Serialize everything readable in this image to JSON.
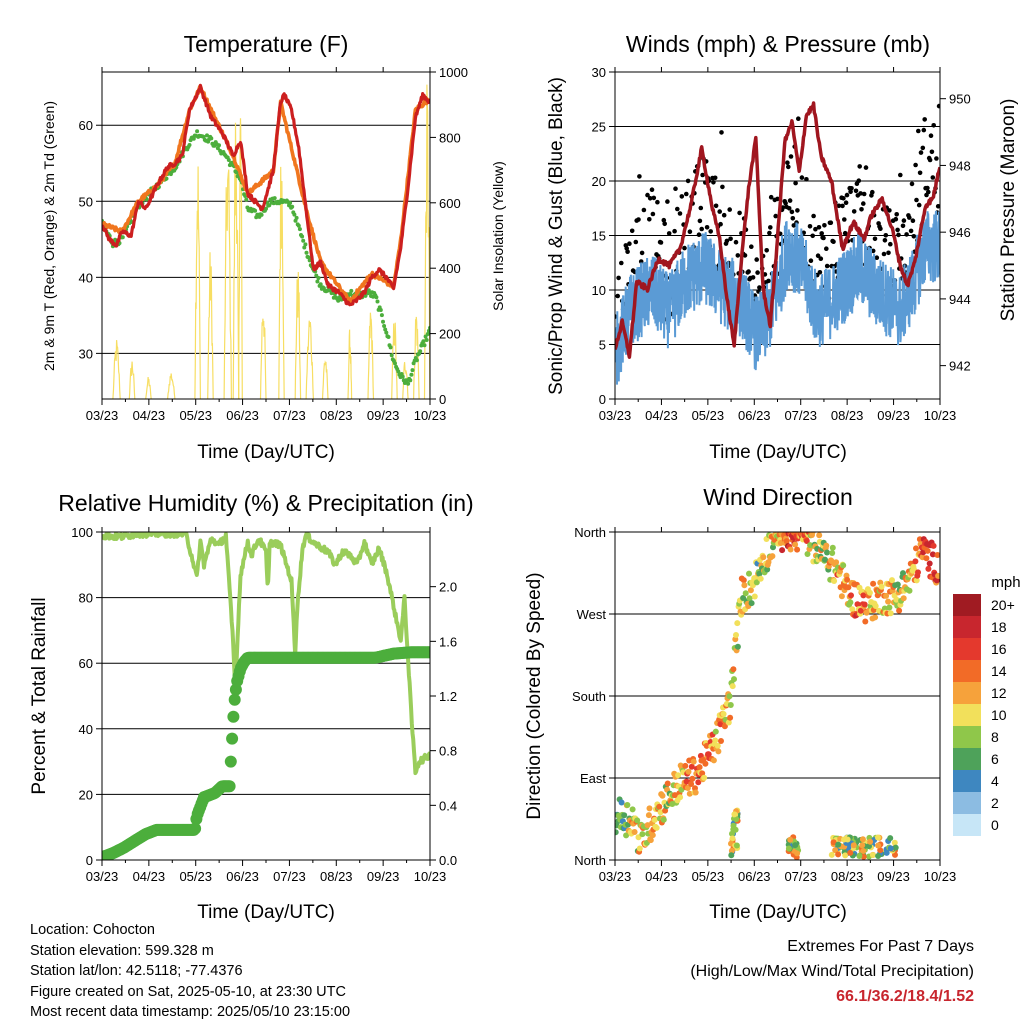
{
  "charts": {
    "temperature": {
      "title": "Temperature (F)",
      "xlabel": "Time (Day/UTC)",
      "ylabel_left": "2m & 9m T (Red, Orange) & 2m Td (Green)",
      "ylabel_right": "Solar Insolation (Yellow)"
    },
    "winds": {
      "title": "Winds (mph) & Pressure (mb)",
      "xlabel": "Time (Day/UTC)",
      "ylabel_left": "Sonic/Prop Wind & Gust (Blue, Black)",
      "ylabel_right": "Station Pressure (Maroon)"
    },
    "humidity": {
      "title": "Relative Humidity (%) & Precipitation (in)",
      "xlabel": "Time (Day/UTC)",
      "ylabel_left": "Percent & Total Rainfall"
    },
    "direction": {
      "title": "Wind Direction",
      "xlabel": "Time (Day/UTC)",
      "ylabel_left": "Direction (Colored By Speed)",
      "legend_title": "mph"
    }
  },
  "chart_data": [
    {
      "id": "temperature",
      "type": "line",
      "x_ticks": [
        "03/23",
        "04/23",
        "05/23",
        "06/23",
        "07/23",
        "08/23",
        "09/23",
        "10/23"
      ],
      "ylim": [
        24,
        67
      ],
      "y_ticks": [
        30,
        40,
        50,
        60
      ],
      "y2lim": [
        0,
        1000
      ],
      "y2_ticks": [
        0,
        200,
        400,
        600,
        800,
        1000
      ],
      "series": [
        {
          "name": "2m T",
          "color": "#cc1f1f",
          "x": [
            0,
            0.2,
            0.4,
            0.55,
            0.8,
            1,
            1.2,
            1.5,
            1.8,
            2,
            2.2,
            2.4,
            2.7,
            3,
            3.3,
            3.6,
            3.8,
            4,
            4.2,
            4.4,
            4.7,
            4.9,
            5,
            5.2,
            5.4,
            5.6,
            5.8,
            6,
            6.2,
            6.5,
            6.8,
            7,
            7.2,
            7.4,
            7.6,
            7.8,
            8,
            8.2,
            8.4,
            8.6,
            8.8,
            9
          ],
          "values": [
            47,
            45,
            44.2,
            46,
            45.5,
            50,
            49,
            52,
            54.5,
            55,
            56,
            62,
            65,
            61,
            59,
            56,
            58,
            51,
            50,
            49,
            54,
            63,
            64,
            62,
            57,
            49,
            41,
            42,
            39,
            38,
            36.3,
            37,
            38,
            40,
            41,
            40,
            38.5,
            44,
            52,
            61,
            64,
            63
          ]
        },
        {
          "name": "9m T",
          "color": "#f0761e",
          "x": [
            0,
            0.55,
            1,
            1.5,
            2,
            2.4,
            2.7,
            3.6,
            4,
            4.7,
            4.9,
            5.6,
            6,
            6.8,
            7.4,
            8,
            8.2,
            8.6,
            9
          ],
          "values": [
            47,
            46,
            50,
            52,
            55,
            62,
            65,
            56,
            51,
            54,
            63,
            49,
            42,
            36.8,
            40.5,
            38.8,
            45,
            62,
            63.5
          ]
        },
        {
          "name": "2m Td",
          "color": "#4cae3c",
          "x": [
            0,
            0.3,
            0.55,
            1,
            1.5,
            2,
            2.3,
            2.6,
            3,
            3.4,
            3.8,
            4,
            4.3,
            4.6,
            4.9,
            5.2,
            5.5,
            5.8,
            6,
            6.3,
            6.5,
            6.8,
            7,
            7.3,
            7.5,
            7.8,
            8,
            8.2,
            8.4,
            8.6,
            8.8,
            9
          ],
          "values": [
            47,
            44.5,
            45,
            49.5,
            52,
            54.5,
            57,
            59,
            58,
            56,
            53,
            49,
            48,
            50,
            50,
            49.5,
            45,
            41,
            39,
            38,
            37,
            38,
            37.5,
            38,
            37.5,
            33,
            29,
            27,
            26,
            29,
            31,
            33
          ]
        },
        {
          "name": "Solar",
          "axis": "right",
          "color": "#f7de63",
          "peaks": [
            [
              0.3,
              0.5,
              190
            ],
            [
              0.75,
              0.9,
              130
            ],
            [
              1.2,
              1.35,
              70
            ],
            [
              1.8,
              2.0,
              90
            ],
            [
              2.55,
              2.7,
              800
            ],
            [
              2.9,
              3.05,
              470
            ],
            [
              3.35,
              3.55,
              830
            ],
            [
              3.6,
              3.75,
              950
            ],
            [
              3.75,
              3.85,
              1000
            ],
            [
              4.35,
              4.5,
              350
            ],
            [
              4.85,
              5.0,
              830
            ],
            [
              5.3,
              5.45,
              420
            ],
            [
              5.6,
              5.8,
              280
            ],
            [
              6.05,
              6.2,
              150
            ],
            [
              6.75,
              6.85,
              220
            ],
            [
              7.3,
              7.45,
              300
            ],
            [
              7.95,
              8.1,
              270
            ],
            [
              8.25,
              8.4,
              140
            ],
            [
              8.55,
              8.7,
              300
            ],
            [
              8.85,
              9.0,
              990
            ]
          ]
        }
      ]
    },
    {
      "id": "winds",
      "type": "scatter+line",
      "x_ticks": [
        "03/23",
        "04/23",
        "05/23",
        "06/23",
        "07/23",
        "08/23",
        "09/23",
        "10/23"
      ],
      "ylim": [
        0,
        30
      ],
      "y_ticks": [
        0,
        5,
        10,
        15,
        20,
        25,
        30
      ],
      "y2lim": [
        941,
        950.8
      ],
      "y2_ticks": [
        942,
        944,
        946,
        948,
        950
      ],
      "series": [
        {
          "name": "Sonic/Prop Wind",
          "color": "#5b9bd5",
          "base": [
            [
              0,
              4
            ],
            [
              0.4,
              8
            ],
            [
              1,
              10
            ],
            [
              1.5,
              8
            ],
            [
              2,
              11
            ],
            [
              2.5,
              12
            ],
            [
              3,
              10
            ],
            [
              3.5,
              9
            ],
            [
              3.9,
              6
            ],
            [
              4.2,
              7
            ],
            [
              4.5,
              10
            ],
            [
              4.8,
              14
            ],
            [
              5.2,
              12
            ],
            [
              5.6,
              8
            ],
            [
              6,
              9
            ],
            [
              6.5,
              11
            ],
            [
              6.8,
              12
            ],
            [
              7.2,
              10
            ],
            [
              7.6,
              9
            ],
            [
              7.9,
              8
            ],
            [
              8.3,
              11
            ],
            [
              8.6,
              14
            ],
            [
              9,
              14
            ]
          ]
        },
        {
          "name": "Gust",
          "color": "#000000",
          "base": [
            [
              0,
              7
            ],
            [
              0.4,
              12
            ],
            [
              1,
              15
            ],
            [
              1.5,
              11
            ],
            [
              2,
              16
            ],
            [
              2.5,
              18
            ],
            [
              3,
              15
            ],
            [
              3.5,
              13
            ],
            [
              3.9,
              9
            ],
            [
              4.2,
              11
            ],
            [
              4.5,
              15
            ],
            [
              4.8,
              20
            ],
            [
              5.2,
              17
            ],
            [
              5.6,
              12
            ],
            [
              6,
              14
            ],
            [
              6.5,
              16
            ],
            [
              6.8,
              17
            ],
            [
              7.2,
              14
            ],
            [
              7.6,
              13
            ],
            [
              7.9,
              12
            ],
            [
              8.3,
              17
            ],
            [
              8.6,
              22
            ],
            [
              9,
              21
            ]
          ]
        },
        {
          "name": "Station Pressure",
          "axis": "right",
          "color": "#a0161f",
          "x": [
            0,
            0.2,
            0.4,
            0.6,
            0.9,
            1.2,
            1.5,
            1.8,
            2.1,
            2.4,
            2.7,
            2.9,
            3.1,
            3.3,
            3.5,
            3.7,
            3.9,
            4.1,
            4.3,
            4.5,
            4.7,
            4.9,
            5.1,
            5.3,
            5.5,
            5.7,
            6,
            6.3,
            6.6,
            6.9,
            7.1,
            7.4,
            7.7,
            7.9,
            8.1,
            8.3,
            8.6,
            8.8,
            9
          ],
          "values": [
            942.5,
            943.3,
            942.3,
            944.5,
            944.3,
            945.2,
            945,
            945.5,
            946.8,
            948.5,
            946.7,
            945.8,
            944,
            942.6,
            945.2,
            947.3,
            948.8,
            944.3,
            943.2,
            945.8,
            948.7,
            949.3,
            947.8,
            949.5,
            949.8,
            948.3,
            947.5,
            945.5,
            946.3,
            945.8,
            946.5,
            947,
            946,
            945,
            944.4,
            945.1,
            946.8,
            947,
            948
          ]
        }
      ]
    },
    {
      "id": "humidity",
      "type": "line",
      "x_ticks": [
        "03/23",
        "04/23",
        "05/23",
        "06/23",
        "07/23",
        "08/23",
        "09/23",
        "10/23"
      ],
      "ylim": [
        0,
        100
      ],
      "y_ticks": [
        0,
        20,
        40,
        60,
        80,
        100
      ],
      "y2lim": [
        0,
        2.4
      ],
      "y2_ticks": [
        "0.0",
        "0.4",
        "0.8",
        "1.2",
        "1.6",
        "2.0"
      ],
      "series": [
        {
          "name": "Relative Humidity",
          "color": "#9acd5b",
          "x": [
            0,
            0.5,
            1,
            1.5,
            2,
            2.3,
            2.5,
            2.6,
            2.7,
            2.8,
            3,
            3.2,
            3.4,
            3.6,
            3.65,
            3.7,
            3.8,
            4,
            4.1,
            4.3,
            4.5,
            4.55,
            4.6,
            4.9,
            5.2,
            5.3,
            5.35,
            5.5,
            5.6,
            5.9,
            6.2,
            6.4,
            6.6,
            6.8,
            7,
            7.2,
            7.4,
            7.6,
            7.8,
            7.9,
            8.1,
            8.2,
            8.3,
            8.5,
            8.6,
            8.7,
            9
          ],
          "values": [
            99,
            98.5,
            99.5,
            99.5,
            99.5,
            99.5,
            91,
            86,
            97,
            90,
            98,
            96,
            99,
            66,
            53,
            63,
            87,
            97,
            93,
            98,
            94,
            81,
            97,
            96,
            85,
            63,
            76,
            95,
            99,
            96,
            94,
            90,
            94,
            93,
            90,
            97,
            90,
            95,
            88,
            83,
            72,
            67,
            80,
            42,
            27,
            30,
            32
          ]
        },
        {
          "name": "Total Rainfall",
          "axis": "right",
          "color": "#4cae3c",
          "x": [
            0,
            0.3,
            0.6,
            0.9,
            1.2,
            1.5,
            1.8,
            2.0,
            2.15,
            2.3,
            2.55,
            2.6,
            2.8,
            3.1,
            3.3,
            3.5,
            3.52,
            3.55,
            3.6,
            3.62,
            3.7,
            3.8,
            3.9,
            4.0,
            4.5,
            5.0,
            6.0,
            7.0,
            7.5,
            8.0,
            8.5,
            9.0
          ],
          "values": [
            0.02,
            0.05,
            0.09,
            0.14,
            0.19,
            0.22,
            0.22,
            0.22,
            0.22,
            0.22,
            0.22,
            0.32,
            0.46,
            0.49,
            0.54,
            0.54,
            0.64,
            0.8,
            1.02,
            1.13,
            1.3,
            1.4,
            1.45,
            1.48,
            1.48,
            1.48,
            1.48,
            1.48,
            1.48,
            1.51,
            1.52,
            1.52
          ]
        }
      ]
    },
    {
      "id": "direction",
      "type": "scatter",
      "x_ticks": [
        "03/23",
        "04/23",
        "05/23",
        "06/23",
        "07/23",
        "08/23",
        "09/23",
        "10/23"
      ],
      "y_ticks": [
        "North",
        "East",
        "South",
        "West",
        "North"
      ],
      "ylim": [
        0,
        360
      ],
      "trend": [
        [
          0,
          50
        ],
        [
          0.5,
          45
        ],
        [
          0.7,
          20
        ],
        [
          1.2,
          55
        ],
        [
          1.8,
          85
        ],
        [
          2.3,
          95
        ],
        [
          2.8,
          130
        ],
        [
          3.2,
          175
        ],
        [
          3.5,
          290
        ],
        [
          3.8,
          300
        ],
        [
          4.1,
          330
        ],
        [
          4.5,
          360
        ],
        [
          4.9,
          360
        ],
        [
          5.3,
          355
        ],
        [
          5.6,
          340
        ],
        [
          5.9,
          330
        ],
        [
          6.2,
          315
        ],
        [
          6.5,
          290
        ],
        [
          7.0,
          280
        ],
        [
          7.4,
          290
        ],
        [
          7.8,
          290
        ],
        [
          8.2,
          310
        ],
        [
          8.5,
          340
        ],
        [
          9,
          320
        ]
      ],
      "side_cluster": [
        [
          4.8,
          7.8,
          3,
          25
        ]
      ],
      "legend": {
        "labels": [
          "20+",
          "18",
          "16",
          "14",
          "12",
          "10",
          "8",
          "6",
          "4",
          "2",
          "0"
        ],
        "colors": [
          "#a01b22",
          "#c8262e",
          "#e4392d",
          "#f26b27",
          "#f6a23b",
          "#f2e05b",
          "#8fc74a",
          "#4ea25a",
          "#3e87c0",
          "#8cbce2",
          "#c7e6f7"
        ]
      }
    }
  ],
  "info": {
    "location": "Location: Cohocton",
    "elevation": "Station elevation: 599.328 m",
    "latlon": "Station lat/lon: 42.5118; -77.4376",
    "created": "Figure created on Sat, 2025-05-10, at 23:30 UTC",
    "recent": "Most recent data timestamp: 2025/05/10 23:15:00"
  },
  "extremes": {
    "title": "Extremes For Past 7 Days",
    "subtitle": "(High/Low/Max Wind/Total Precipitation)",
    "values": "66.1/36.2/18.4/1.52"
  }
}
